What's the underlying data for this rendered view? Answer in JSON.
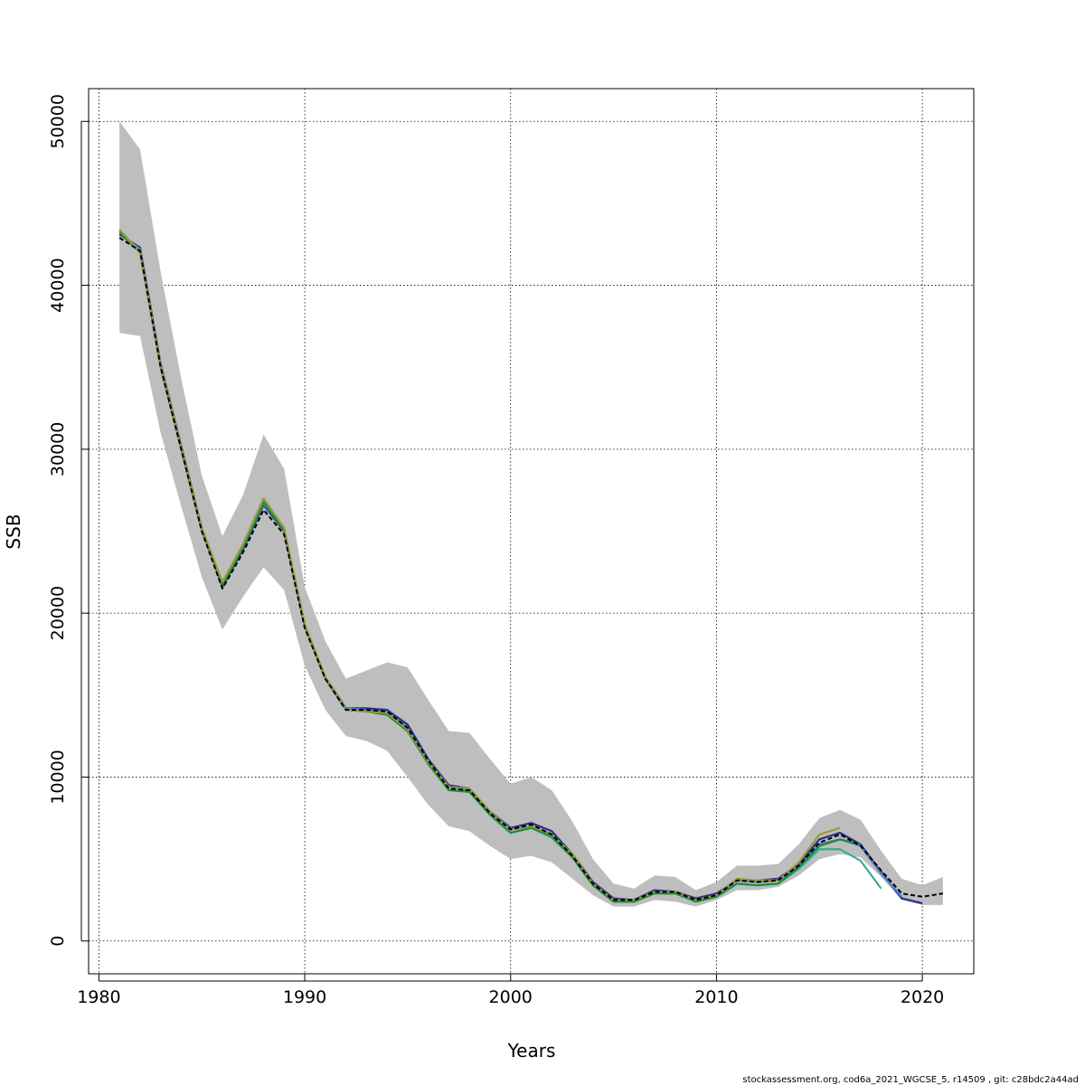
{
  "chart_data": {
    "type": "line",
    "xlabel": "Years",
    "ylabel": "SSB",
    "xlim": [
      1979.5,
      2022.5
    ],
    "ylim": [
      -2000,
      52000
    ],
    "xticks": [
      "1980",
      "1990",
      "2000",
      "2010",
      "2020"
    ],
    "yticks": [
      "0",
      "10000",
      "20000",
      "30000",
      "40000",
      "50000"
    ],
    "grid": true,
    "footer": "stockassessment.org, cod6a_2021_WGCSE_5, r14509 , git: c28bdc2a44ad",
    "band": {
      "x": [
        1981,
        1982,
        1983,
        1984,
        1985,
        1986,
        1987,
        1988,
        1989,
        1990,
        1991,
        1992,
        1993,
        1994,
        1995,
        1996,
        1997,
        1998,
        1999,
        2000,
        2001,
        2002,
        2003,
        2004,
        2005,
        2006,
        2007,
        2008,
        2009,
        2010,
        2011,
        2012,
        2013,
        2014,
        2015,
        2016,
        2017,
        2018,
        2019,
        2020,
        2021
      ],
      "upper": [
        50000,
        48300,
        40800,
        34300,
        28400,
        24700,
        27200,
        30900,
        28800,
        21600,
        18300,
        16000,
        16500,
        17000,
        16700,
        14700,
        12800,
        12700,
        11100,
        9600,
        10000,
        9200,
        7300,
        5000,
        3500,
        3200,
        4000,
        3900,
        3100,
        3600,
        4600,
        4600,
        4700,
        5900,
        7500,
        8000,
        7400,
        5500,
        3800,
        3400,
        3900
      ],
      "lower": [
        37100,
        36900,
        31000,
        26500,
        22200,
        19000,
        21000,
        22800,
        21400,
        16800,
        14100,
        12500,
        12200,
        11600,
        10000,
        8300,
        7000,
        6700,
        5800,
        5000,
        5200,
        4800,
        3800,
        2800,
        2100,
        2100,
        2500,
        2400,
        2100,
        2500,
        3100,
        3100,
        3300,
        4000,
        5000,
        5300,
        5100,
        3900,
        2500,
        2200,
        2200
      ]
    },
    "series": [
      {
        "color": "#000000",
        "dashed": true,
        "x": [
          1981,
          1982,
          1983,
          1984,
          1985,
          1986,
          1987,
          1988,
          1989,
          1990,
          1991,
          1992,
          1993,
          1994,
          1995,
          1996,
          1997,
          1998,
          1999,
          2000,
          2001,
          2002,
          2003,
          2004,
          2005,
          2006,
          2007,
          2008,
          2009,
          2010,
          2011,
          2012,
          2013,
          2014,
          2015,
          2016,
          2017,
          2018,
          2019,
          2020,
          2021
        ],
        "values": [
          42900,
          42100,
          35000,
          30000,
          25000,
          21500,
          23700,
          26300,
          24800,
          19100,
          16000,
          14100,
          14100,
          14000,
          13000,
          11000,
          9300,
          9200,
          7800,
          6800,
          7100,
          6500,
          5200,
          3500,
          2500,
          2500,
          3000,
          3000,
          2500,
          2800,
          3700,
          3600,
          3700,
          4600,
          6000,
          6500,
          5800,
          4300,
          2900,
          2700,
          2900
        ]
      },
      {
        "color": "#2a2e8c",
        "x": [
          1981,
          1982,
          1983,
          1984,
          1985,
          1986,
          1987,
          1988,
          1989,
          1990,
          1991,
          1992,
          1993,
          1994,
          1995,
          1996,
          1997,
          1998,
          1999,
          2000,
          2001,
          2002,
          2003,
          2004,
          2005,
          2006,
          2007,
          2008,
          2009,
          2010,
          2011,
          2012,
          2013,
          2014,
          2015,
          2016,
          2017,
          2018,
          2019,
          2020
        ],
        "values": [
          43100,
          42300,
          35200,
          30200,
          25200,
          21600,
          23900,
          26600,
          25000,
          19200,
          16100,
          14200,
          14200,
          14100,
          13200,
          11100,
          9500,
          9300,
          7900,
          6900,
          7200,
          6700,
          5300,
          3600,
          2600,
          2500,
          3100,
          3000,
          2600,
          2900,
          3700,
          3700,
          3800,
          4700,
          6200,
          6600,
          5900,
          4200,
          2600,
          2300
        ]
      },
      {
        "color": "#4d7dd1",
        "x": [
          1981,
          1982,
          1983,
          1984,
          1985,
          1986,
          1987,
          1988,
          1989,
          1990,
          1991,
          1992,
          1993,
          1994,
          1995,
          1996,
          1997,
          1998,
          1999,
          2000,
          2001,
          2002,
          2003,
          2004,
          2005,
          2006,
          2007,
          2008,
          2009,
          2010,
          2011,
          2012,
          2013,
          2014,
          2015,
          2016,
          2017,
          2018,
          2019
        ],
        "values": [
          43200,
          42200,
          35100,
          30100,
          25100,
          21700,
          24000,
          26700,
          25100,
          19300,
          16100,
          14200,
          14100,
          14000,
          13000,
          11000,
          9400,
          9200,
          7900,
          6800,
          7000,
          6500,
          5200,
          3500,
          2500,
          2400,
          3000,
          3000,
          2500,
          2800,
          3700,
          3600,
          3700,
          4600,
          5900,
          6200,
          5800,
          4100,
          2700
        ]
      },
      {
        "color": "#3aaa94",
        "x": [
          1981,
          1982,
          1983,
          1984,
          1985,
          1986,
          1987,
          1988,
          1989,
          1990,
          1991,
          1992,
          1993,
          1994,
          1995,
          1996,
          1997,
          1998,
          1999,
          2000,
          2001,
          2002,
          2003,
          2004,
          2005,
          2006,
          2007,
          2008,
          2009,
          2010,
          2011,
          2012,
          2013,
          2014,
          2015,
          2016,
          2017,
          2018
        ],
        "values": [
          43300,
          42100,
          35000,
          30000,
          25000,
          21800,
          24100,
          26800,
          25100,
          19200,
          16000,
          14100,
          14000,
          13800,
          12800,
          10800,
          9200,
          9100,
          7700,
          6600,
          6900,
          6300,
          5100,
          3400,
          2400,
          2400,
          2900,
          2900,
          2400,
          2700,
          3500,
          3400,
          3500,
          4400,
          5600,
          5600,
          4900,
          3200
        ]
      },
      {
        "color": "#1c8c3a",
        "x": [
          1981,
          1982,
          1983,
          1984,
          1985,
          1986,
          1987,
          1988,
          1989,
          1990,
          1991,
          1992,
          1993,
          1994,
          1995,
          1996,
          1997,
          1998,
          1999,
          2000,
          2001,
          2002,
          2003,
          2004,
          2005,
          2006,
          2007,
          2008,
          2009,
          2010,
          2011,
          2012,
          2013,
          2014,
          2015,
          2016,
          2017
        ],
        "values": [
          43200,
          42000,
          35000,
          30000,
          25100,
          21700,
          24000,
          26800,
          25000,
          19200,
          16000,
          14100,
          14000,
          13800,
          12800,
          10800,
          9200,
          9100,
          7700,
          6600,
          6900,
          6400,
          5100,
          3400,
          2400,
          2400,
          2900,
          2900,
          2400,
          2700,
          3500,
          3400,
          3500,
          4500,
          5800,
          6200,
          5900
        ]
      },
      {
        "color": "#9a9a3a",
        "x": [
          1981,
          1982,
          1983,
          1984,
          1985,
          1986,
          1987,
          1988,
          1989,
          1990,
          1991,
          1992,
          1993,
          1994,
          1995,
          1996,
          1997,
          1998,
          1999,
          2000,
          2001,
          2002,
          2003,
          2004,
          2005,
          2006,
          2007,
          2008,
          2009,
          2010,
          2011,
          2012,
          2013,
          2014,
          2015,
          2016
        ],
        "values": [
          43400,
          42000,
          35100,
          30100,
          25200,
          21900,
          24200,
          27000,
          25200,
          19300,
          16100,
          14100,
          14000,
          13900,
          12900,
          10900,
          9400,
          9300,
          7900,
          6800,
          7000,
          6500,
          5300,
          3500,
          2500,
          2500,
          3000,
          3000,
          2500,
          2800,
          3800,
          3700,
          3700,
          4800,
          6500,
          6900
        ]
      }
    ]
  }
}
